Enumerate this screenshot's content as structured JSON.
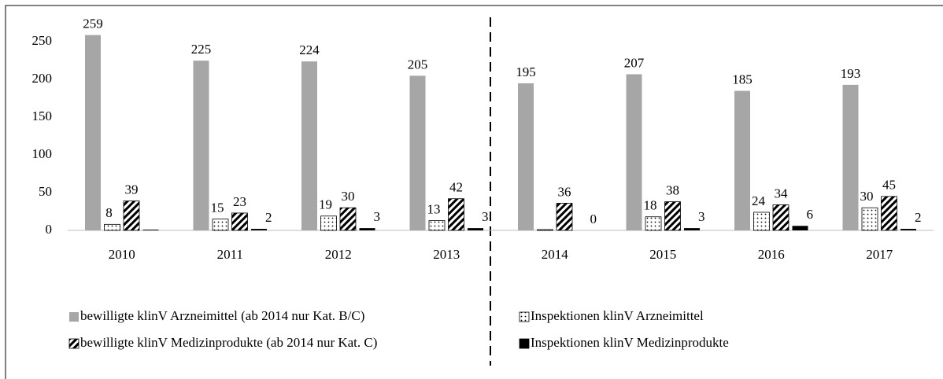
{
  "chart_data": {
    "type": "bar",
    "categories": [
      "2010",
      "2011",
      "2012",
      "2013",
      "2014",
      "2015",
      "2016",
      "2017"
    ],
    "series": [
      {
        "name": "bewilligte klinV Arzneimittel (ab 2014 nur Kat. B/C)",
        "color": "#a6a6a6",
        "pattern": "solid",
        "values": [
          259,
          225,
          224,
          205,
          195,
          207,
          185,
          193
        ]
      },
      {
        "name": "Inspektionen klinV Arzneimittel",
        "color": "#000000",
        "pattern": "dots",
        "values": [
          8,
          15,
          19,
          13,
          1,
          18,
          24,
          30
        ],
        "value_labels": [
          "8",
          "15",
          "19",
          "13",
          null,
          "18",
          "24",
          "30"
        ]
      },
      {
        "name": "bewilligte klinV Medizinprodukte (ab 2014 nur Kat. C)",
        "color": "#000000",
        "pattern": "hatch",
        "values": [
          39,
          23,
          30,
          42,
          36,
          38,
          34,
          45
        ]
      },
      {
        "name": "Inspektionen klinV Medizinprodukte",
        "color": "#000000",
        "pattern": "solid",
        "values": [
          1,
          2,
          3,
          3,
          0,
          3,
          6,
          2
        ],
        "value_labels": [
          null,
          "2",
          "3",
          "3",
          "0",
          "3",
          "6",
          "2"
        ]
      }
    ],
    "ylim": [
      0,
      270
    ],
    "yticks": [
      0,
      50,
      100,
      150,
      200,
      250
    ],
    "grid": false
  }
}
